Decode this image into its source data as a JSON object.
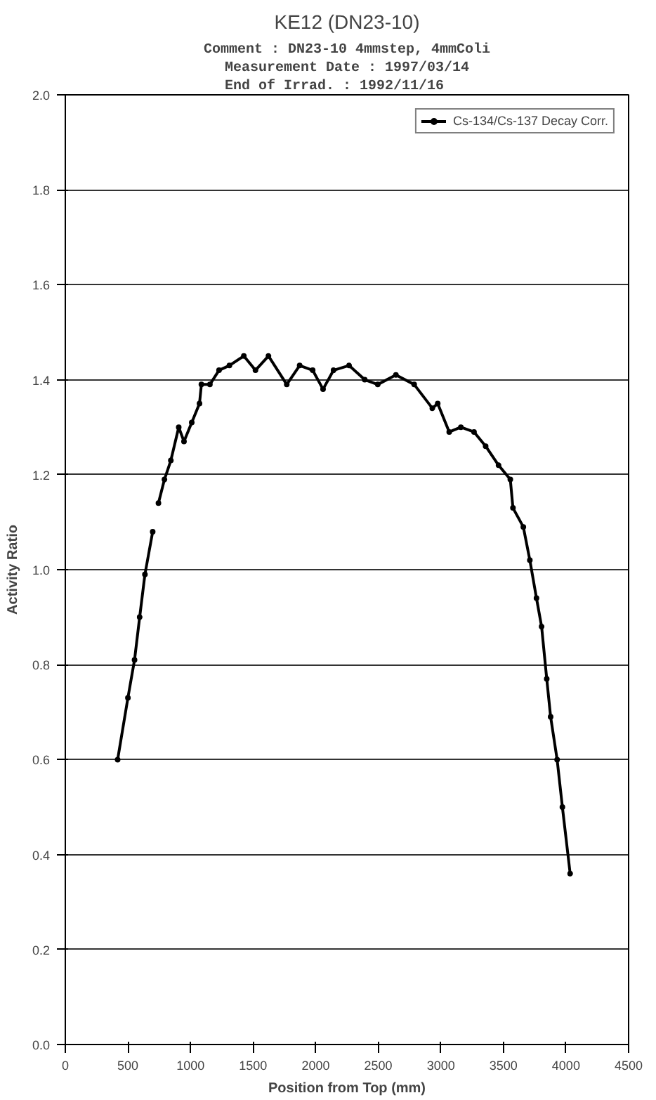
{
  "chart_data": {
    "type": "line",
    "title": "KE12 (DN23-10)",
    "annotations": [
      "Comment : DN23-10 4mmstep, 4mmColi",
      "Measurement Date : 1997/03/14",
      "End of Irrad.    : 1992/11/16"
    ],
    "xlabel": "Position from Top (mm)",
    "ylabel": "Activity Ratio",
    "x": [
      418,
      500,
      553,
      594,
      636,
      698,
      720,
      744,
      792,
      843,
      906,
      948,
      1010,
      1072,
      1087,
      1155,
      1228,
      1311,
      1426,
      1519,
      1623,
      1769,
      1872,
      1976,
      2059,
      2143,
      2267,
      2392,
      2496,
      2641,
      2787,
      2932,
      2975,
      3067,
      3160,
      3265,
      3358,
      3461,
      3555,
      3576,
      3659,
      3711,
      3764,
      3805,
      3846,
      3877,
      3929,
      3971,
      4033
    ],
    "series": [
      {
        "name": "Cs-134/Cs-137 Decay Corr.",
        "color": "#000000",
        "values": [
          0.6,
          0.73,
          0.81,
          0.9,
          0.99,
          1.08,
          null,
          1.14,
          1.19,
          1.23,
          1.3,
          1.27,
          1.31,
          1.35,
          1.39,
          1.39,
          1.42,
          1.43,
          1.45,
          1.42,
          1.45,
          1.39,
          1.43,
          1.42,
          1.38,
          1.42,
          1.43,
          1.4,
          1.39,
          1.41,
          1.39,
          1.34,
          1.35,
          1.29,
          1.3,
          1.29,
          1.26,
          1.22,
          1.19,
          1.13,
          1.09,
          1.02,
          0.94,
          0.88,
          0.77,
          0.69,
          0.6,
          0.5,
          0.36
        ]
      }
    ],
    "xlim": [
      0,
      4500
    ],
    "xticks": [
      0,
      500,
      1000,
      1500,
      2000,
      2500,
      3000,
      3500,
      4000,
      4500
    ],
    "ylim": [
      0,
      2.0
    ],
    "yticks": [
      {
        "value": 0,
        "label": "0.0"
      },
      0.2,
      0.4,
      0.6,
      0.8,
      {
        "value": 1,
        "label": "1.0"
      },
      1.2,
      1.4,
      1.6,
      1.8,
      {
        "value": 2,
        "label": "2.0"
      }
    ],
    "grid": "y",
    "legend": "top right",
    "marker": "circle",
    "line_style": "solid"
  }
}
